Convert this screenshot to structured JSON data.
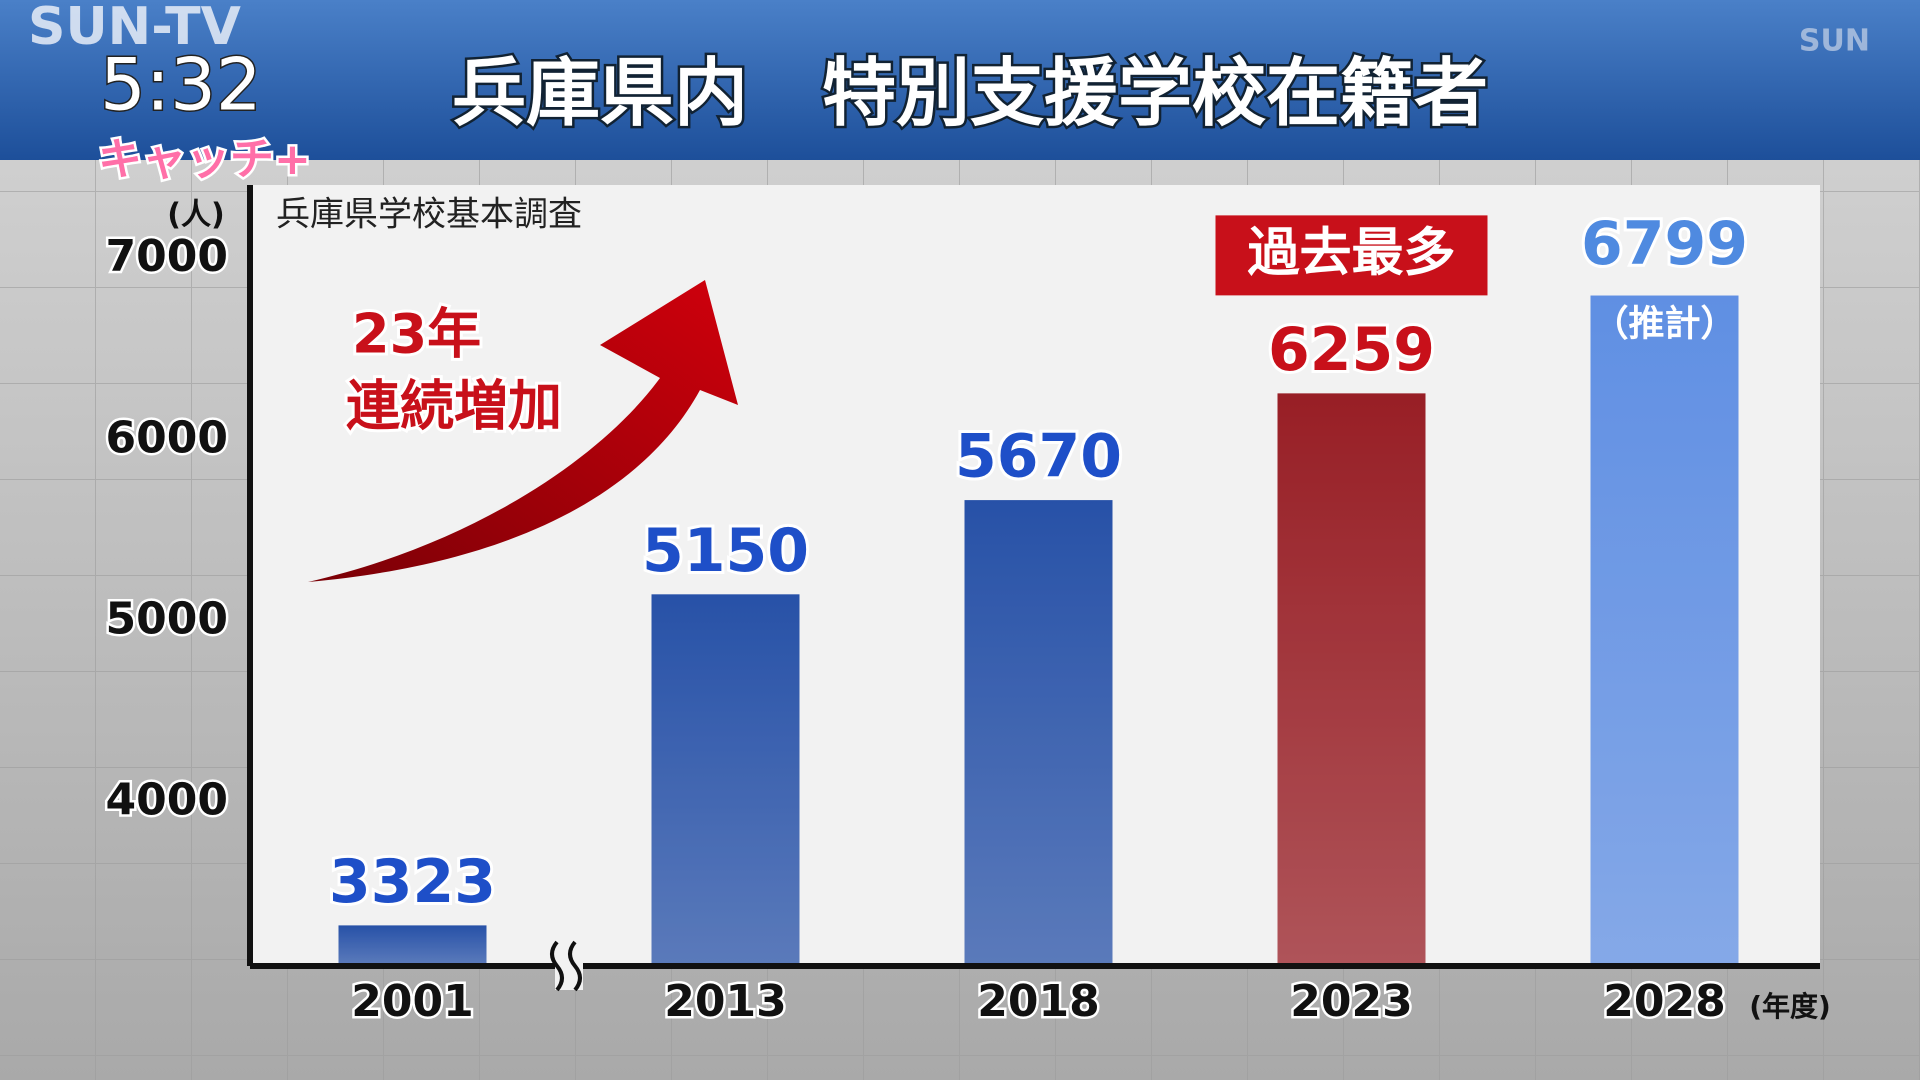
{
  "overlay": {
    "channel": "SUN-TV",
    "time": "5:32",
    "program": "キャッチ+",
    "logo": "SUN"
  },
  "chart_data": {
    "type": "bar",
    "title": "兵庫県内　特別支援学校在籍者",
    "source": "兵庫県学校基本調査",
    "y_unit": "(人)",
    "x_unit": "(年度)",
    "categories": [
      "2001",
      "2013",
      "2018",
      "2023",
      "2028"
    ],
    "values": [
      3323,
      5150,
      5670,
      6259,
      6799
    ],
    "colors": [
      "#0a3a9c",
      "#0a3a9c",
      "#0a3a9c",
      "#8a0008",
      "#4a80e0"
    ],
    "value_label_colors": [
      "#1e4fc8",
      "#1e4fc8",
      "#1e4fc8",
      "#c8101a",
      "#4f8ae0"
    ],
    "annotations": [
      "23年",
      "連続増加",
      "過去最多",
      "（推計）"
    ],
    "ylim": [
      3110,
      7420
    ],
    "yticks": [
      4000,
      5000,
      6000,
      7000
    ],
    "axis_break": true,
    "grid": false
  }
}
